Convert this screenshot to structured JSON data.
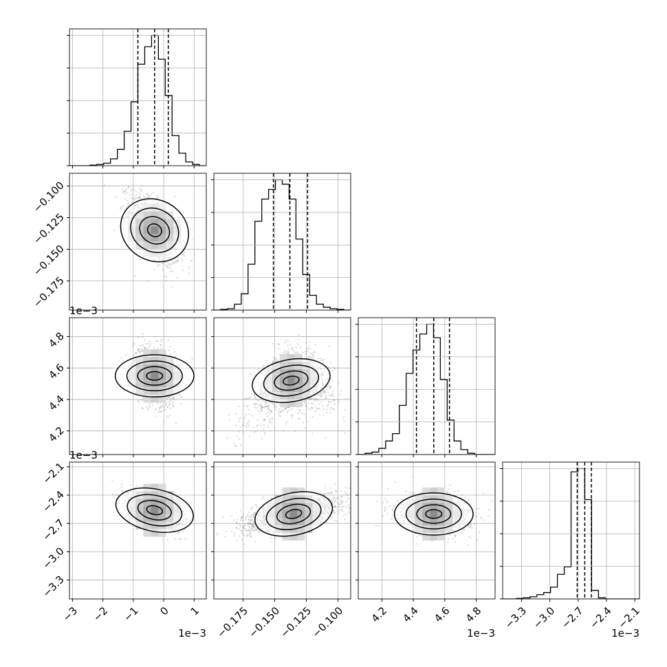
{
  "figure": {
    "type": "corner-plot"
  },
  "chart_data": {
    "type": "corner",
    "params": [
      {
        "name": "",
        "range": [
          -3.1,
          1.4
        ],
        "ticks": [
          -3,
          -2,
          -1,
          0,
          1
        ],
        "tick_labels": [
          "−3",
          "−2",
          "−1",
          "0",
          "1"
        ],
        "offset": "1e−3",
        "quantiles": [
          -0.85,
          -0.3,
          0.15
        ]
      },
      {
        "name": "",
        "range": [
          -0.198,
          -0.09
        ],
        "ticks": [
          -0.175,
          -0.15,
          -0.125,
          -0.1
        ],
        "tick_labels": [
          "−0.175",
          "−0.150",
          "−0.125",
          "−0.100"
        ],
        "offset": "",
        "quantiles": [
          -0.151,
          -0.138,
          -0.124
        ]
      },
      {
        "name": "",
        "range": [
          4.05,
          4.92
        ],
        "ticks": [
          4.2,
          4.4,
          4.6,
          4.8
        ],
        "tick_labels": [
          "4.2",
          "4.4",
          "4.6",
          "4.8"
        ],
        "offset": "1e−3",
        "quantiles": [
          4.42,
          4.53,
          4.63
        ]
      },
      {
        "name": "",
        "range": [
          -3.5,
          -2.05
        ],
        "ticks": [
          -3.3,
          -3.0,
          -2.7,
          -2.4,
          -2.1
        ],
        "tick_labels": [
          "−3.3",
          "−3.0",
          "−2.7",
          "−2.4",
          "−2.1"
        ],
        "offset": "1e−3",
        "quantiles": [
          -2.71,
          -2.63,
          -2.56
        ]
      }
    ],
    "hist": {
      "p0": {
        "edges": [
          -3.1,
          -2.875,
          -2.65,
          -2.425,
          -2.2,
          -1.975,
          -1.75,
          -1.525,
          -1.3,
          -1.075,
          -0.85,
          -0.625,
          -0.4,
          -0.175,
          0.05,
          0.275,
          0.5,
          0.725,
          0.95,
          1.175,
          1.4
        ],
        "counts": [
          0,
          0,
          0,
          1,
          2,
          4,
          11,
          26,
          55,
          102,
          162,
          190,
          208,
          170,
          112,
          48,
          20,
          6,
          2,
          0
        ]
      },
      "p1": {
        "edges": [
          -0.198,
          -0.1926,
          -0.1872,
          -0.1818,
          -0.1764,
          -0.171,
          -0.1656,
          -0.1602,
          -0.1548,
          -0.1494,
          -0.144,
          -0.1386,
          -0.1332,
          -0.1278,
          -0.1224,
          -0.117,
          -0.1116,
          -0.1062,
          -0.1008,
          -0.0954,
          -0.09
        ],
        "counts": [
          0,
          1,
          2,
          8,
          22,
          62,
          120,
          150,
          163,
          176,
          170,
          150,
          96,
          48,
          20,
          8,
          4,
          2,
          1,
          0
        ]
      },
      "p2": {
        "edges": [
          4.05,
          4.0935,
          4.137,
          4.1805,
          4.224,
          4.2675,
          4.311,
          4.3545,
          4.398,
          4.4415,
          4.485,
          4.5285,
          4.572,
          4.6155,
          4.659,
          4.7025,
          4.746,
          4.7895,
          4.833,
          4.8765,
          4.92
        ],
        "counts": [
          0,
          2,
          4,
          10,
          22,
          34,
          80,
          132,
          170,
          196,
          212,
          190,
          122,
          56,
          22,
          8,
          2,
          0,
          0,
          0
        ]
      },
      "p3": {
        "edges": [
          -3.5,
          -3.4275,
          -3.355,
          -3.2825,
          -3.21,
          -3.1375,
          -3.065,
          -2.9925,
          -2.92,
          -2.8475,
          -2.775,
          -2.7025,
          -2.63,
          -2.5575,
          -2.485,
          -2.4125,
          -2.34,
          -2.2675,
          -2.195,
          -2.1225,
          -2.05
        ],
        "counts": [
          0,
          0,
          1,
          2,
          4,
          8,
          12,
          22,
          46,
          60,
          238,
          244,
          186,
          16,
          2,
          0,
          0,
          0,
          0,
          0
        ]
      }
    },
    "pairs": [
      {
        "x": "p0",
        "y": "p1",
        "center": [
          -0.3,
          -0.135
        ],
        "spread": [
          0.9,
          0.03
        ],
        "corr": -0.55
      },
      {
        "x": "p0",
        "y": "p2",
        "center": [
          -0.3,
          4.55
        ],
        "spread": [
          0.75,
          0.2
        ],
        "corr": -0.25
      },
      {
        "x": "p1",
        "y": "p2",
        "center": [
          -0.137,
          4.52
        ],
        "spread": [
          0.036,
          0.22
        ],
        "corr": 0.3,
        "curve": "arc"
      },
      {
        "x": "p0",
        "y": "p3",
        "center": [
          -0.3,
          -2.56
        ],
        "spread": [
          0.95,
          0.2
        ],
        "corr": -0.5
      },
      {
        "x": "p1",
        "y": "p3",
        "center": [
          -0.135,
          -2.6
        ],
        "spread": [
          0.045,
          0.22
        ],
        "corr": 0.65
      },
      {
        "x": "p2",
        "y": "p3",
        "center": [
          4.53,
          -2.6
        ],
        "spread": [
          0.25,
          0.22
        ],
        "corr": -0.1
      }
    ],
    "grid": true,
    "quantile_lines": "dashed"
  }
}
